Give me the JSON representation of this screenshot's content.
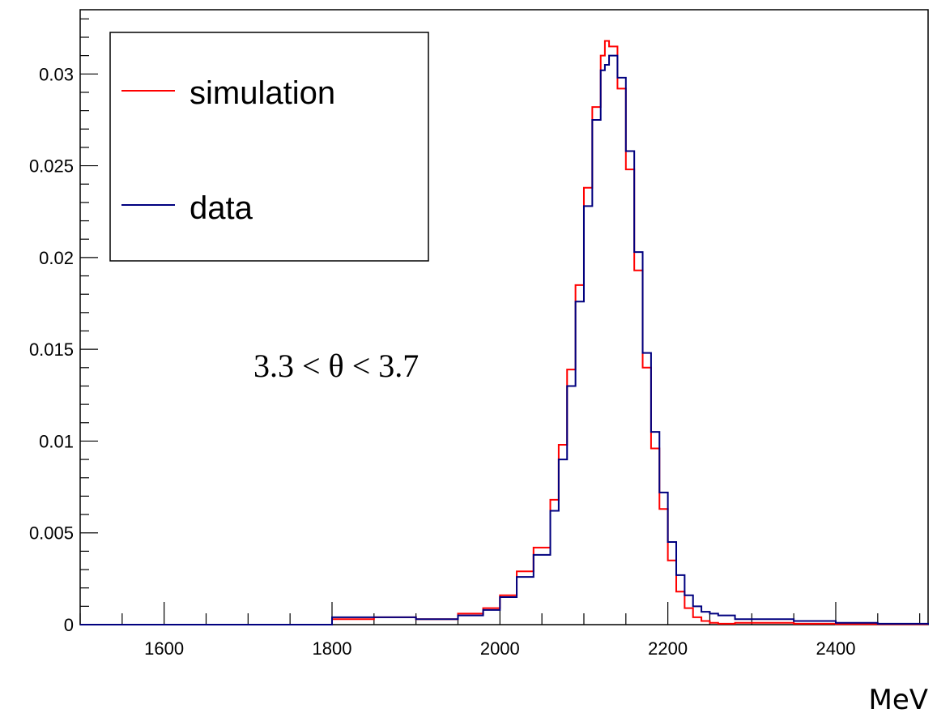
{
  "chart_data": {
    "type": "line",
    "title": "",
    "xlabel": "MeV",
    "ylabel": "",
    "xlim": [
      1500,
      2510
    ],
    "ylim": [
      0,
      0.0335
    ],
    "x_ticks": [
      1600,
      1800,
      2000,
      2200,
      2400
    ],
    "y_ticks": [
      0,
      0.005,
      0.01,
      0.015,
      0.02,
      0.025,
      0.03
    ],
    "y_tick_labels": [
      "0",
      "0.005",
      "0.01",
      "0.015",
      "0.02",
      "0.025",
      "0.03"
    ],
    "grid": false,
    "legend_position": "top-left",
    "annotation": "3.3 < θ < 3.7",
    "series": [
      {
        "name": "simulation",
        "color": "#ff0000",
        "x": [
          1500,
          1760,
          1800,
          1850,
          1900,
          1950,
          1980,
          2000,
          2020,
          2040,
          2060,
          2070,
          2080,
          2090,
          2100,
          2110,
          2120,
          2125,
          2130,
          2140,
          2150,
          2160,
          2170,
          2180,
          2190,
          2200,
          2210,
          2220,
          2230,
          2240,
          2250,
          2260,
          2280,
          2300,
          2350,
          2400,
          2450,
          2510
        ],
        "y": [
          0,
          0,
          0.0003,
          0.0004,
          0.0003,
          0.0006,
          0.0009,
          0.0016,
          0.0029,
          0.0042,
          0.0068,
          0.0098,
          0.0139,
          0.0185,
          0.0238,
          0.0282,
          0.031,
          0.0318,
          0.0315,
          0.0292,
          0.0248,
          0.0193,
          0.014,
          0.0096,
          0.0063,
          0.0035,
          0.0018,
          0.0009,
          0.0004,
          0.0002,
          0.0001,
          5e-05,
          0.0001,
          0.0001,
          5e-05,
          3e-05,
          2e-05,
          0
        ]
      },
      {
        "name": "data",
        "color": "#00007f",
        "x": [
          1500,
          1760,
          1800,
          1850,
          1900,
          1950,
          1980,
          2000,
          2020,
          2040,
          2060,
          2070,
          2080,
          2090,
          2100,
          2110,
          2120,
          2125,
          2130,
          2140,
          2150,
          2160,
          2170,
          2180,
          2190,
          2200,
          2210,
          2220,
          2230,
          2240,
          2250,
          2260,
          2280,
          2300,
          2350,
          2400,
          2450,
          2510
        ],
        "y": [
          0,
          0,
          0.0004,
          0.0004,
          0.0003,
          0.0005,
          0.0008,
          0.0015,
          0.0026,
          0.0038,
          0.0062,
          0.009,
          0.013,
          0.0176,
          0.0228,
          0.0275,
          0.0302,
          0.0305,
          0.031,
          0.0298,
          0.0258,
          0.0203,
          0.0148,
          0.0105,
          0.0072,
          0.0045,
          0.0027,
          0.0016,
          0.001,
          0.0007,
          0.0006,
          0.0005,
          0.0003,
          0.0003,
          0.0002,
          0.0001,
          5e-05,
          0
        ]
      }
    ]
  }
}
